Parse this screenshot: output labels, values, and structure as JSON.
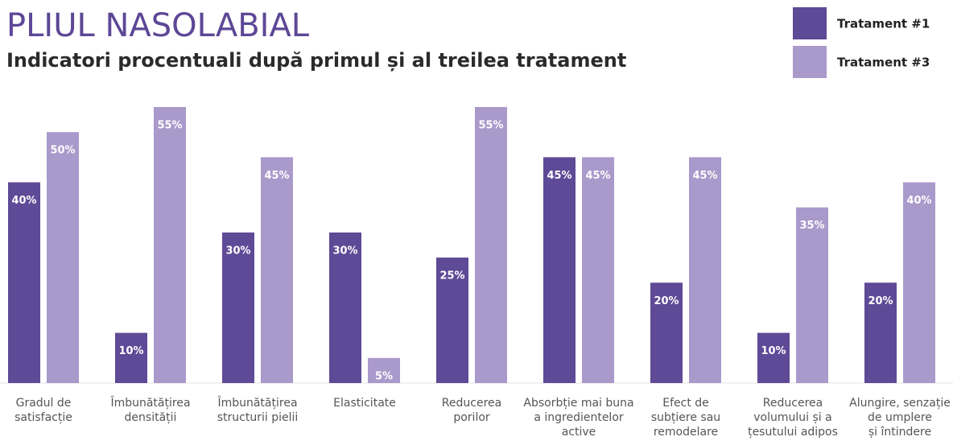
{
  "chart_data": {
    "type": "bar",
    "title": "PLIUL NASOLABIAL",
    "subtitle": "Indicatori procentuali după primul și al treilea tratament",
    "categories": [
      "Gradul de\nsatisfacție",
      "Îmbunătățirea\ndensității",
      "Îmbunătățirea\nstructurii pielii",
      "Elasticitate",
      "Reducerea\nporilor",
      "Absorbție mai buna\na ingredientelor\nactive",
      "Efect de\nsubțiere sau\nremodelare",
      "Reducerea\nvolumului și a\nțesutului adipos",
      "Alungire, senzație\nde umplere\nși întindere"
    ],
    "series": [
      {
        "name": "Tratament #1",
        "color": "#5e4a96",
        "values": [
          40,
          10,
          30,
          30,
          25,
          45,
          20,
          10,
          20
        ],
        "value_labels": [
          "40%",
          "10%",
          "30%",
          "30%",
          "25%",
          "45%",
          "20%",
          "10%",
          "20%"
        ]
      },
      {
        "name": "Tratament #3",
        "color": "#aa99cb",
        "values": [
          50,
          55,
          45,
          5,
          55,
          45,
          45,
          35,
          40
        ],
        "value_labels": [
          "50%",
          "55%",
          "45%",
          "5%",
          "55%",
          "45%",
          "45%",
          "35%",
          "40%"
        ]
      }
    ],
    "ylim": [
      0,
      55
    ],
    "legend": "top-right"
  }
}
